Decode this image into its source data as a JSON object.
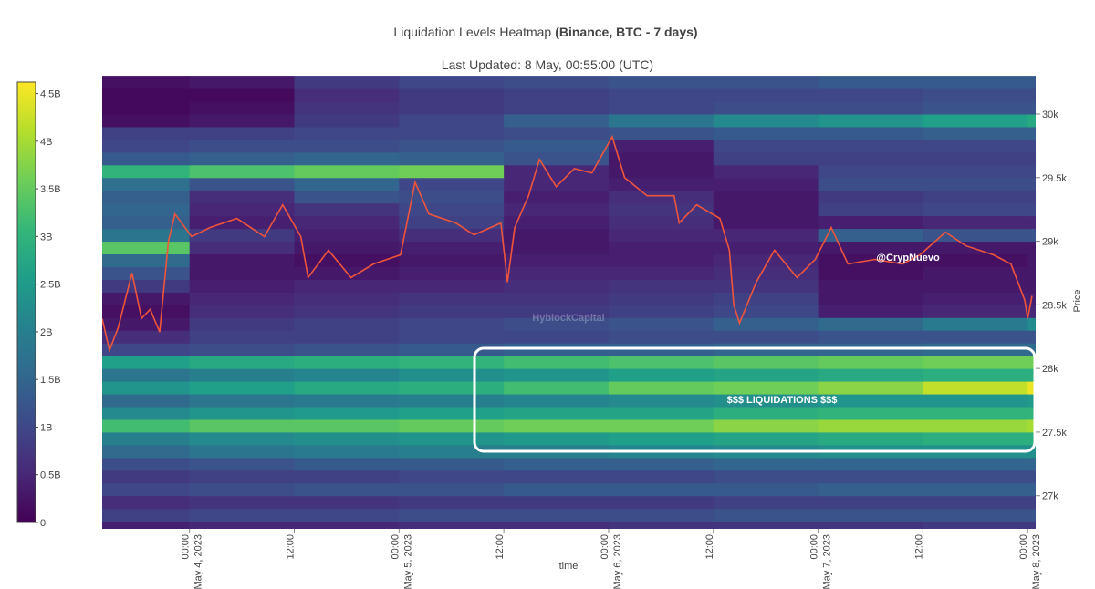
{
  "chart_data": {
    "type": "heatmap",
    "title": "Liquidation Levels Heatmap",
    "title_detail": "(Binance, BTC - 7 days)",
    "subtitle": "Last Updated: 8 May, 00:55:00 (UTC)",
    "x_label": "time",
    "y_label": "Price",
    "watermark": "HyblockCapital",
    "annotations": [
      "@CrypNuevo",
      "$$$ LIQUIDATIONS $$$"
    ],
    "xlim": [
      "2023-05-03 14:00",
      "2023-05-08 00:55"
    ],
    "xticks": [
      {
        "value": "2023-05-04 00:00",
        "label": [
          "00:00",
          "May 4, 2023"
        ]
      },
      {
        "value": "2023-05-04 12:00",
        "label": [
          "12:00"
        ]
      },
      {
        "value": "2023-05-05 00:00",
        "label": [
          "00:00",
          "May 5, 2023"
        ]
      },
      {
        "value": "2023-05-05 12:00",
        "label": [
          "12:00"
        ]
      },
      {
        "value": "2023-05-06 00:00",
        "label": [
          "00:00",
          "May 6, 2023"
        ]
      },
      {
        "value": "2023-05-06 12:00",
        "label": [
          "12:00"
        ]
      },
      {
        "value": "2023-05-07 00:00",
        "label": [
          "00:00",
          "May 7, 2023"
        ]
      },
      {
        "value": "2023-05-07 12:00",
        "label": [
          "12:00"
        ]
      },
      {
        "value": "2023-05-08 00:00",
        "label": [
          "00:00",
          "May 8, 2023"
        ]
      }
    ],
    "ylim": [
      26740,
      30315
    ],
    "yticks": [
      {
        "value": 27000,
        "label": "27k"
      },
      {
        "value": 27500,
        "label": "27.5k"
      },
      {
        "value": 28000,
        "label": "28k"
      },
      {
        "value": 28500,
        "label": "28.5k"
      },
      {
        "value": 29000,
        "label": "29k"
      },
      {
        "value": 29500,
        "label": "29.5k"
      },
      {
        "value": 30000,
        "label": "30k"
      }
    ],
    "clim": [
      0,
      4.62
    ],
    "cticks": [
      0,
      {
        "value": 0.5,
        "label": "0.5B"
      },
      {
        "value": 1,
        "label": "1B"
      },
      {
        "value": 1.5,
        "label": "1.5B"
      },
      {
        "value": 2,
        "label": "2B"
      },
      {
        "value": 2.5,
        "label": "2.5B"
      },
      {
        "value": 3,
        "label": "3B"
      },
      {
        "value": 3.5,
        "label": "3.5B"
      },
      {
        "value": 4,
        "label": "4B"
      },
      {
        "value": 4.5,
        "label": "4.5B"
      }
    ],
    "colorscale": [
      "#440154",
      "#482878",
      "#3e4989",
      "#31688e",
      "#26828e",
      "#1f9e89",
      "#35b779",
      "#6ece58",
      "#b5de2b",
      "#fde725"
    ],
    "x": [
      "2023-05-03 14:00",
      "2023-05-04 00:00",
      "2023-05-04 12:00",
      "2023-05-05 00:00",
      "2023-05-05 12:00",
      "2023-05-06 00:00",
      "2023-05-06 12:00",
      "2023-05-07 00:00",
      "2023-05-07 12:00",
      "2023-05-08 00:00",
      "2023-05-08 00:55"
    ],
    "y": [
      26700,
      26800,
      26900,
      27000,
      27100,
      27200,
      27300,
      27400,
      27500,
      27600,
      27700,
      27800,
      27900,
      28000,
      28100,
      28200,
      28300,
      28400,
      28500,
      28600,
      28700,
      28800,
      28900,
      29000,
      29100,
      29200,
      29300,
      29400,
      29500,
      29600,
      29700,
      29800,
      29900,
      30000,
      30100,
      30200,
      30300
    ],
    "z": [
      [
        0.4,
        0.5,
        0.5,
        0.6,
        0.6,
        0.7,
        0.7,
        0.7,
        0.8,
        0.8
      ],
      [
        0.9,
        1.0,
        1.0,
        1.1,
        1.1,
        1.1,
        1.2,
        1.2,
        1.2,
        1.2
      ],
      [
        0.6,
        0.7,
        0.7,
        0.8,
        0.8,
        0.8,
        0.9,
        0.9,
        0.9,
        0.9
      ],
      [
        1.0,
        1.1,
        1.2,
        1.2,
        1.3,
        1.3,
        1.3,
        1.4,
        1.4,
        1.4
      ],
      [
        0.8,
        0.9,
        0.9,
        1.0,
        1.0,
        1.0,
        1.1,
        1.1,
        1.1,
        1.1
      ],
      [
        1.1,
        1.2,
        1.3,
        1.3,
        1.4,
        1.4,
        1.5,
        1.5,
        1.5,
        1.5
      ],
      [
        1.6,
        1.8,
        1.9,
        2.0,
        2.0,
        2.1,
        2.2,
        2.3,
        2.3,
        2.3
      ],
      [
        2.0,
        2.2,
        2.3,
        2.4,
        2.5,
        2.6,
        2.7,
        2.8,
        2.9,
        2.9
      ],
      [
        3.2,
        3.4,
        3.4,
        3.5,
        3.6,
        3.6,
        3.8,
        3.9,
        3.9,
        4.0
      ],
      [
        2.2,
        2.4,
        2.5,
        2.6,
        2.7,
        2.7,
        2.9,
        3.0,
        3.0,
        3.0
      ],
      [
        1.6,
        1.8,
        1.9,
        2.0,
        2.1,
        2.2,
        2.3,
        2.4,
        2.4,
        2.5
      ],
      [
        2.4,
        2.6,
        2.8,
        2.9,
        3.2,
        3.5,
        3.6,
        3.8,
        4.2,
        4.5
      ],
      [
        1.8,
        2.0,
        2.1,
        2.3,
        2.4,
        2.6,
        2.7,
        2.8,
        2.9,
        2.9
      ],
      [
        2.6,
        2.8,
        2.9,
        3.0,
        3.2,
        3.3,
        3.4,
        3.5,
        3.6,
        3.6
      ],
      [
        1.0,
        1.1,
        1.2,
        1.3,
        1.4,
        1.4,
        1.5,
        1.5,
        1.6,
        1.6
      ],
      [
        0.6,
        0.9,
        0.9,
        1.0,
        1.0,
        1.1,
        1.1,
        1.2,
        1.2,
        1.2
      ],
      [
        0.3,
        0.8,
        0.9,
        1.0,
        1.1,
        1.2,
        1.4,
        1.6,
        1.9,
        2.2
      ],
      [
        0.2,
        0.6,
        0.7,
        0.8,
        0.8,
        0.9,
        1.0,
        0.4,
        0.5,
        0.5
      ],
      [
        0.3,
        0.5,
        0.6,
        0.7,
        0.7,
        0.8,
        0.9,
        0.3,
        0.4,
        0.4
      ],
      [
        0.8,
        0.4,
        0.5,
        0.5,
        0.6,
        0.7,
        0.7,
        0.3,
        0.3,
        0.3
      ],
      [
        1.2,
        0.3,
        0.3,
        0.4,
        0.5,
        0.5,
        0.6,
        0.2,
        0.3,
        0.3
      ],
      [
        1.6,
        0.3,
        0.2,
        0.3,
        0.4,
        0.4,
        0.5,
        0.2,
        0.2,
        0.3
      ],
      [
        3.4,
        0.6,
        0.3,
        0.4,
        0.3,
        0.4,
        0.4,
        0.3,
        0.3,
        0.3
      ],
      [
        1.8,
        0.8,
        0.4,
        0.6,
        0.3,
        0.5,
        0.5,
        1.4,
        1.2,
        1.2
      ],
      [
        1.4,
        0.4,
        0.5,
        0.9,
        0.4,
        0.6,
        0.3,
        0.4,
        0.5,
        0.5
      ],
      [
        1.5,
        0.5,
        0.7,
        1.0,
        0.5,
        0.7,
        0.3,
        0.9,
        1.0,
        1.0
      ],
      [
        1.4,
        0.6,
        1.2,
        1.1,
        0.4,
        0.6,
        0.3,
        0.8,
        0.9,
        0.9
      ],
      [
        1.7,
        1.2,
        1.5,
        1.0,
        0.5,
        0.4,
        0.4,
        1.1,
        1.1,
        1.1
      ],
      [
        3.0,
        3.3,
        3.5,
        3.6,
        0.5,
        0.3,
        0.5,
        1.0,
        1.0,
        1.0
      ],
      [
        1.3,
        1.4,
        1.5,
        1.4,
        1.2,
        0.3,
        0.9,
        0.9,
        0.9,
        0.9
      ],
      [
        1.0,
        1.1,
        1.1,
        1.2,
        1.3,
        0.4,
        1.0,
        1.0,
        1.0,
        1.0
      ],
      [
        0.9,
        0.9,
        1.0,
        1.0,
        1.1,
        1.2,
        1.3,
        1.3,
        1.4,
        1.4
      ],
      [
        0.2,
        0.3,
        0.8,
        1.0,
        1.4,
        1.8,
        2.2,
        2.4,
        2.6,
        2.8
      ],
      [
        0.1,
        0.2,
        0.7,
        0.8,
        0.9,
        1.0,
        1.1,
        1.1,
        1.2,
        1.2
      ],
      [
        0.1,
        0.1,
        0.6,
        0.8,
        0.9,
        1.0,
        1.0,
        1.0,
        1.1,
        1.1
      ],
      [
        0.2,
        0.3,
        0.8,
        1.0,
        1.1,
        1.2,
        1.2,
        1.3,
        1.3,
        1.3
      ]
    ],
    "price": {
      "color": "#ef553b",
      "x": [
        "2023-05-03 14:00",
        "2023-05-03 14:50",
        "2023-05-03 15:50",
        "2023-05-03 17:25",
        "2023-05-03 18:30",
        "2023-05-03 19:30",
        "2023-05-03 20:35",
        "2023-05-03 21:35",
        "2023-05-03 22:20",
        "2023-05-04 00:15",
        "2023-05-04 02:20",
        "2023-05-04 05:25",
        "2023-05-04 08:35",
        "2023-05-04 10:40",
        "2023-05-04 12:45",
        "2023-05-04 13:35",
        "2023-05-04 15:55",
        "2023-05-04 18:30",
        "2023-05-04 21:05",
        "2023-05-05 00:10",
        "2023-05-05 01:50",
        "2023-05-05 03:25",
        "2023-05-05 06:30",
        "2023-05-05 08:35",
        "2023-05-05 11:40",
        "2023-05-05 12:25",
        "2023-05-05 13:15",
        "2023-05-05 14:50",
        "2023-05-05 16:05",
        "2023-05-05 18:00",
        "2023-05-05 20:05",
        "2023-05-05 22:05",
        "2023-05-06 00:25",
        "2023-05-06 01:50",
        "2023-05-06 04:25",
        "2023-05-06 07:30",
        "2023-05-06 08:05",
        "2023-05-06 10:05",
        "2023-05-06 12:45",
        "2023-05-06 13:50",
        "2023-05-06 14:20",
        "2023-05-06 15:00",
        "2023-05-06 16:55",
        "2023-05-06 19:00",
        "2023-05-06 21:35",
        "2023-05-06 23:40",
        "2023-05-07 01:30",
        "2023-05-07 03:25",
        "2023-05-07 06:30",
        "2023-05-07 09:40",
        "2023-05-07 11:40",
        "2023-05-07 14:35",
        "2023-05-07 16:55",
        "2023-05-07 20:05",
        "2023-05-07 22:05",
        "2023-05-07 23:40",
        "2023-05-08 00:00",
        "2023-05-08 00:30"
      ],
      "values": [
        28390,
        28143,
        28321,
        28750,
        28393,
        28464,
        28286,
        29000,
        29214,
        29036,
        29107,
        29179,
        29036,
        29286,
        29036,
        28714,
        28929,
        28714,
        28821,
        28893,
        29464,
        29214,
        29143,
        29050,
        29143,
        28679,
        29107,
        29357,
        29643,
        29429,
        29571,
        29536,
        29821,
        29500,
        29357,
        29357,
        29143,
        29286,
        29179,
        28929,
        28500,
        28357,
        28679,
        28929,
        28714,
        28857,
        29107,
        28821,
        28857,
        28821,
        28893,
        29071,
        28964,
        28893,
        28821,
        28536,
        28393,
        28571
      ]
    }
  }
}
